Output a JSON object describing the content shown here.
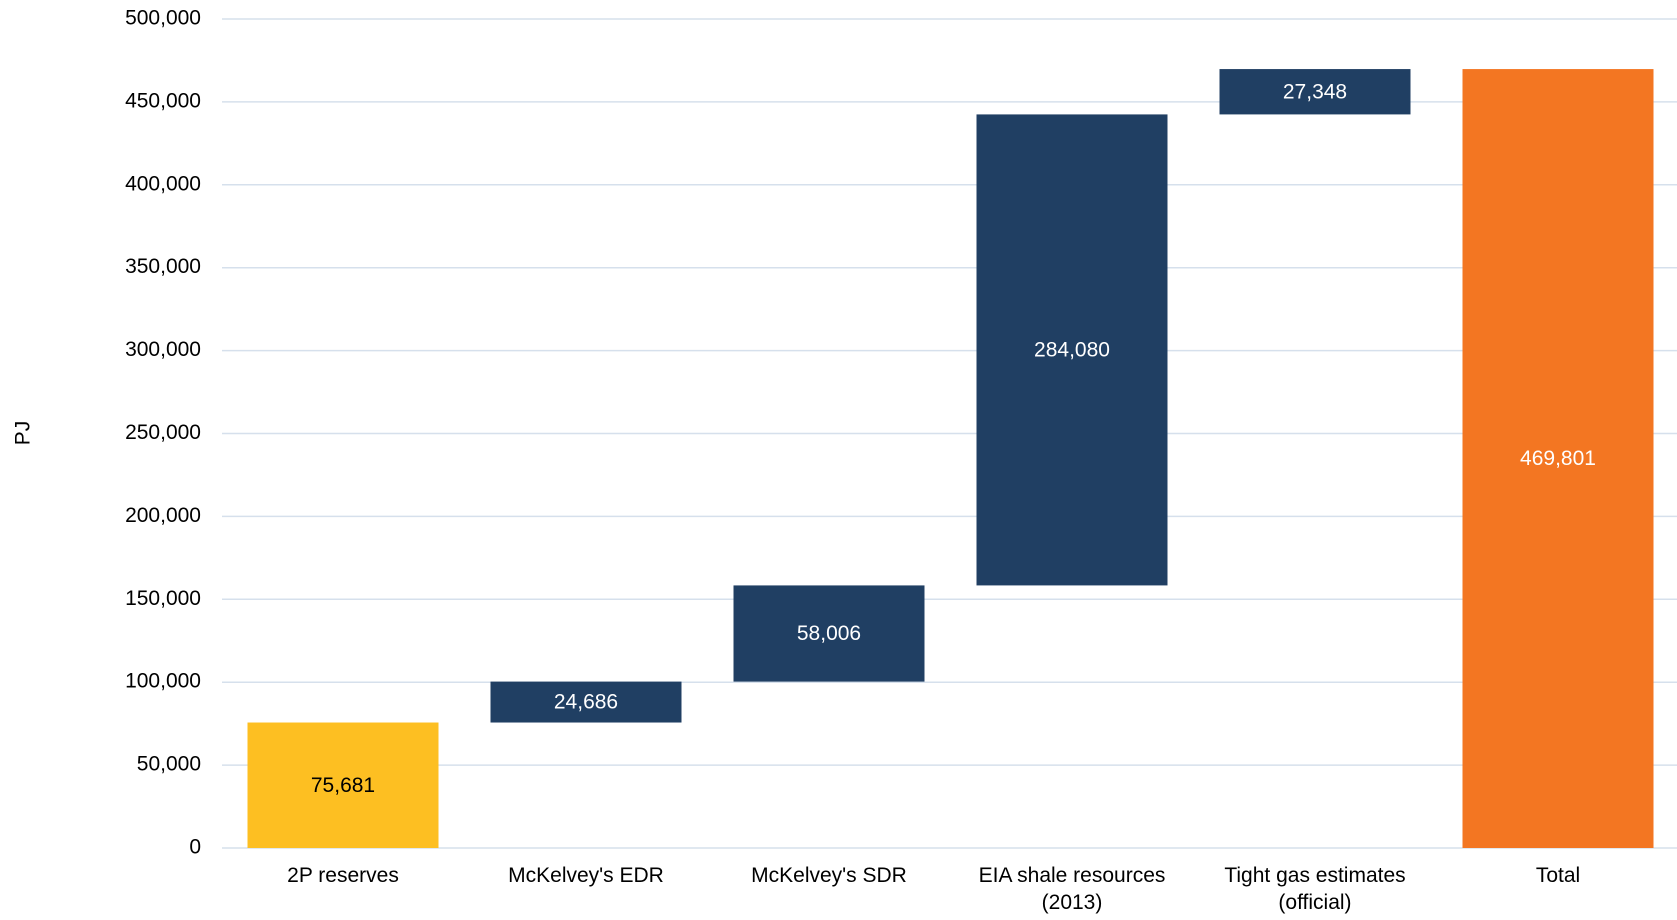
{
  "chart_data": {
    "type": "waterfall",
    "y_label": "PJ",
    "categories": [
      "2P reserves",
      "McKelvey's EDR",
      "McKelvey's SDR",
      "EIA shale resources (2013)",
      "Tight gas estimates (official)",
      "Total"
    ],
    "values": [
      75681,
      24686,
      58006,
      284080,
      27348,
      469801
    ],
    "value_labels": [
      "75,681",
      "24,686",
      "58,006",
      "284,080",
      "27,348",
      "469,801"
    ],
    "is_total": [
      false,
      false,
      false,
      false,
      false,
      true
    ],
    "colors": [
      "#fdbf22",
      "#203f63",
      "#203f63",
      "#203f63",
      "#203f63",
      "#f37622"
    ],
    "label_colors": [
      "#000000",
      "#ffffff",
      "#ffffff",
      "#ffffff",
      "#ffffff",
      "#ffffff"
    ],
    "ylim": [
      0,
      500000
    ],
    "yticks": [
      {
        "value": 0,
        "label": "0"
      },
      {
        "value": 50000,
        "label": "50,000"
      },
      {
        "value": 100000,
        "label": "100,000"
      },
      {
        "value": 150000,
        "label": "150,000"
      },
      {
        "value": 200000,
        "label": "200,000"
      },
      {
        "value": 250000,
        "label": "250,000"
      },
      {
        "value": 300000,
        "label": "300,000"
      },
      {
        "value": 350000,
        "label": "350,000"
      },
      {
        "value": 400000,
        "label": "400,000"
      },
      {
        "value": 450000,
        "label": "450,000"
      },
      {
        "value": 500000,
        "label": "500,000"
      }
    ],
    "grid": true
  }
}
